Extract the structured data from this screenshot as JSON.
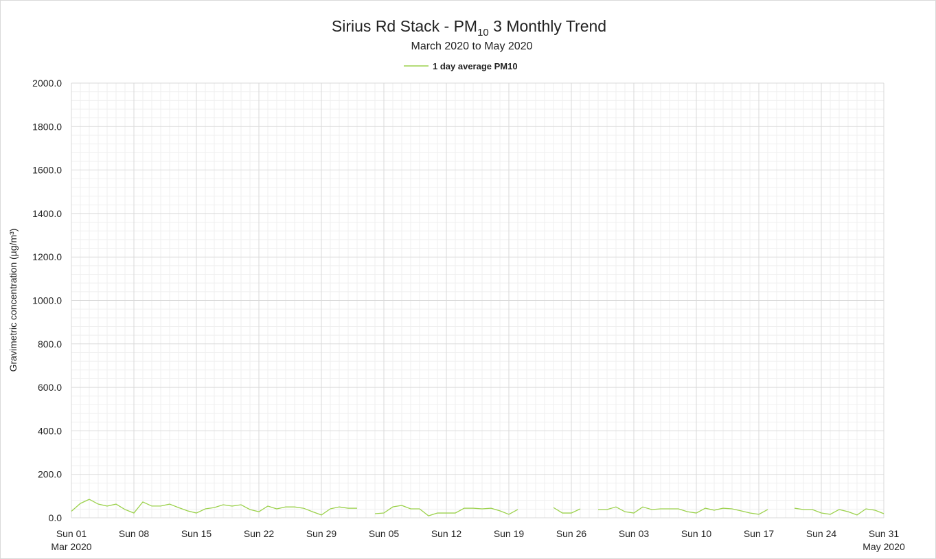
{
  "chart_data": {
    "type": "line",
    "title": {
      "text": "Sirius Rd Stack - PM",
      "subscript": "10",
      "rest": " 3 Monthly Trend"
    },
    "subtitle": "March 2020 to May 2020",
    "y_axis_label": "Gravimetric concentration (µg/m³)",
    "x": [
      "2020-03-01",
      "2020-03-02",
      "2020-03-03",
      "2020-03-04",
      "2020-03-05",
      "2020-03-06",
      "2020-03-07",
      "2020-03-08",
      "2020-03-09",
      "2020-03-10",
      "2020-03-11",
      "2020-03-12",
      "2020-03-13",
      "2020-03-14",
      "2020-03-15",
      "2020-03-16",
      "2020-03-17",
      "2020-03-18",
      "2020-03-19",
      "2020-03-20",
      "2020-03-21",
      "2020-03-22",
      "2020-03-23",
      "2020-03-24",
      "2020-03-25",
      "2020-03-26",
      "2020-03-27",
      "2020-03-28",
      "2020-03-29",
      "2020-03-30",
      "2020-03-31",
      "2020-04-01",
      "2020-04-02",
      "2020-04-03",
      "2020-04-04",
      "2020-04-05",
      "2020-04-06",
      "2020-04-07",
      "2020-04-08",
      "2020-04-09",
      "2020-04-10",
      "2020-04-11",
      "2020-04-12",
      "2020-04-13",
      "2020-04-14",
      "2020-04-15",
      "2020-04-16",
      "2020-04-17",
      "2020-04-18",
      "2020-04-19",
      "2020-04-20",
      "2020-04-21",
      "2020-04-22",
      "2020-04-23",
      "2020-04-24",
      "2020-04-25",
      "2020-04-26",
      "2020-04-27",
      "2020-04-28",
      "2020-04-29",
      "2020-04-30",
      "2020-05-01",
      "2020-05-02",
      "2020-05-03",
      "2020-05-04",
      "2020-05-05",
      "2020-05-06",
      "2020-05-07",
      "2020-05-08",
      "2020-05-09",
      "2020-05-10",
      "2020-05-11",
      "2020-05-12",
      "2020-05-13",
      "2020-05-14",
      "2020-05-15",
      "2020-05-16",
      "2020-05-17",
      "2020-05-18",
      "2020-05-19",
      "2020-05-20",
      "2020-05-21",
      "2020-05-22",
      "2020-05-23",
      "2020-05-24",
      "2020-05-25",
      "2020-05-26",
      "2020-05-27",
      "2020-05-28",
      "2020-05-29",
      "2020-05-30",
      "2020-05-31"
    ],
    "series": [
      {
        "name": "1 day average PM10",
        "color": "#9bd14b",
        "values": [
          30,
          66,
          85,
          63,
          54,
          63,
          38,
          22,
          73,
          54,
          54,
          63,
          47,
          32,
          22,
          41,
          47,
          60,
          54,
          60,
          38,
          28,
          54,
          41,
          50,
          50,
          44,
          28,
          13,
          41,
          50,
          44,
          44,
          null,
          19,
          22,
          50,
          57,
          41,
          41,
          9,
          22,
          22,
          22,
          44,
          44,
          41,
          44,
          32,
          16,
          38,
          null,
          null,
          null,
          47,
          22,
          22,
          41,
          null,
          38,
          38,
          50,
          28,
          22,
          50,
          38,
          41,
          41,
          41,
          28,
          22,
          44,
          35,
          44,
          41,
          32,
          22,
          16,
          38,
          null,
          null,
          44,
          38,
          38,
          22,
          16,
          38,
          28,
          13,
          41,
          35,
          19
        ]
      }
    ],
    "xlim": [
      "2020-03-01",
      "2020-05-31"
    ],
    "xticks": [
      {
        "value": "2020-03-01",
        "label": "Sun 01"
      },
      {
        "value": "2020-03-08",
        "label": "Sun 08"
      },
      {
        "value": "2020-03-15",
        "label": "Sun 15"
      },
      {
        "value": "2020-03-22",
        "label": "Sun 22"
      },
      {
        "value": "2020-03-29",
        "label": "Sun 29"
      },
      {
        "value": "2020-04-05",
        "label": "Sun 05"
      },
      {
        "value": "2020-04-12",
        "label": "Sun 12"
      },
      {
        "value": "2020-04-19",
        "label": "Sun 19"
      },
      {
        "value": "2020-04-26",
        "label": "Sun 26"
      },
      {
        "value": "2020-05-03",
        "label": "Sun 03"
      },
      {
        "value": "2020-05-10",
        "label": "Sun 10"
      },
      {
        "value": "2020-05-17",
        "label": "Sun 17"
      },
      {
        "value": "2020-05-24",
        "label": "Sun 24"
      },
      {
        "value": "2020-05-31",
        "label": "Sun 31"
      }
    ],
    "xtick_sublabels": [
      {
        "value": "2020-03-01",
        "label": "Mar 2020"
      },
      {
        "value": "2020-05-31",
        "label": "May 2020"
      }
    ],
    "ylim": [
      0,
      2000
    ],
    "yticks": [
      {
        "value": 0,
        "label": "0.0"
      },
      {
        "value": 200,
        "label": "200.0"
      },
      {
        "value": 400,
        "label": "400.0"
      },
      {
        "value": 600,
        "label": "600.0"
      },
      {
        "value": 800,
        "label": "800.0"
      },
      {
        "value": 1000,
        "label": "1000.0"
      },
      {
        "value": 1200,
        "label": "1200.0"
      },
      {
        "value": 1400,
        "label": "1400.0"
      },
      {
        "value": 1600,
        "label": "1600.0"
      },
      {
        "value": 1800,
        "label": "1800.0"
      },
      {
        "value": 2000,
        "label": "2000.0"
      }
    ],
    "grid": true,
    "legend": "top"
  }
}
